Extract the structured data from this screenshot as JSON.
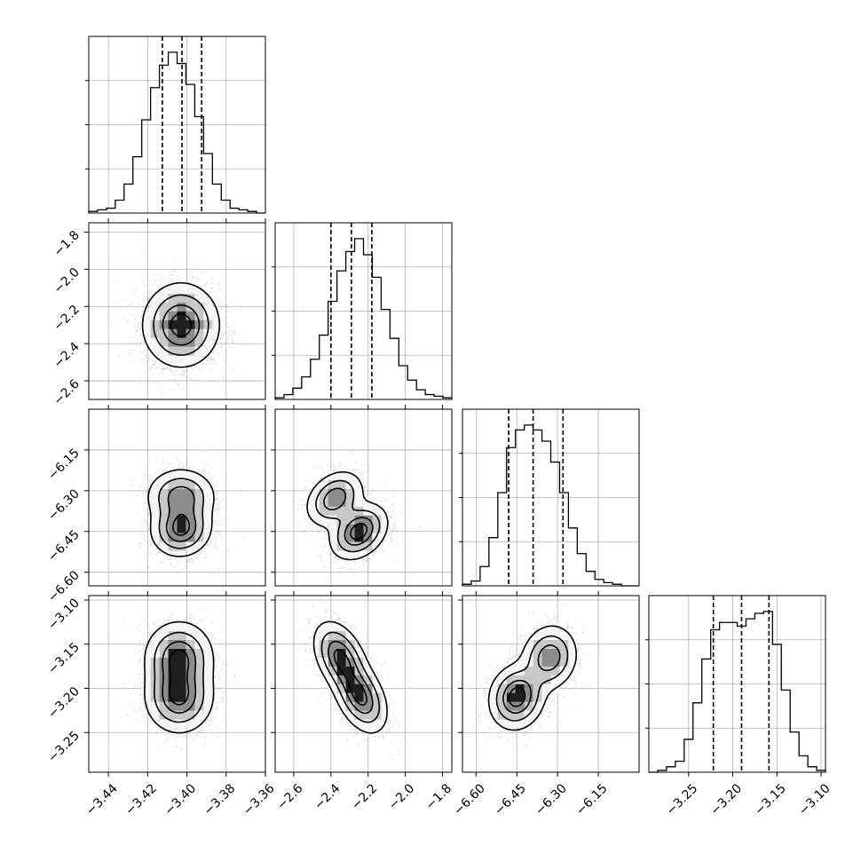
{
  "chart_data": {
    "type": "corner",
    "grid": true,
    "params": [
      {
        "range": [
          -3.45,
          -3.36
        ],
        "ticks": [
          -3.44,
          -3.42,
          -3.4,
          -3.38,
          -3.36
        ],
        "tick_labels": [
          "−3.44",
          "−3.42",
          "−3.40",
          "−3.38",
          "−3.36"
        ],
        "mean": -3.4025,
        "sd": 0.0095,
        "quantiles": [
          -3.4125,
          -3.4025,
          -3.3925
        ],
        "hist": [
          1,
          2,
          3,
          8,
          18,
          35,
          58,
          78,
          92,
          100,
          93,
          80,
          60,
          37,
          18,
          8,
          3,
          2,
          1,
          0
        ]
      },
      {
        "range": [
          -2.7,
          -1.75
        ],
        "ticks": [
          -2.6,
          -2.4,
          -2.2,
          -2.0,
          -1.8
        ],
        "tick_labels": [
          "−2.6",
          "−2.4",
          "−2.2",
          "−2.0",
          "−1.8"
        ],
        "mean": -2.29,
        "sd": 0.11,
        "quantiles": [
          -2.4,
          -2.29,
          -2.18
        ],
        "hist": [
          1,
          3,
          7,
          14,
          25,
          40,
          61,
          80,
          92,
          100,
          90,
          76,
          56,
          38,
          21,
          12,
          6,
          3,
          2,
          1
        ]
      },
      {
        "range": [
          -6.65,
          -6.0
        ],
        "ticks": [
          -6.6,
          -6.45,
          -6.3,
          -6.15
        ],
        "tick_labels": [
          "−6.60",
          "−6.45",
          "−6.30",
          "−6.15"
        ],
        "mean": -6.39,
        "sd": 0.085,
        "quantiles": [
          -6.48,
          -6.39,
          -6.28
        ],
        "hist": [
          1,
          3,
          12,
          30,
          58,
          86,
          97,
          100,
          97,
          90,
          77,
          58,
          36,
          20,
          9,
          4,
          2,
          1,
          0,
          0
        ]
      },
      {
        "range": [
          -3.295,
          -3.095
        ],
        "ticks": [
          -3.25,
          -3.2,
          -3.15,
          -3.1
        ],
        "tick_labels": [
          "−3.25",
          "−3.20",
          "−3.15",
          "−3.10"
        ],
        "mean": -3.19,
        "sd": 0.03,
        "quantiles": [
          -3.222,
          -3.19,
          -3.159
        ],
        "hist": [
          0,
          1,
          3,
          6,
          18,
          38,
          62,
          78,
          82,
          82,
          80,
          84,
          87,
          88,
          70,
          45,
          22,
          9,
          3,
          1
        ]
      }
    ],
    "pairs": [
      {
        "row": 1,
        "col": 0,
        "blobs": [
          {
            "mx": -3.403,
            "my": -2.3,
            "sx": 0.0095,
            "sy": 0.11,
            "rho": 0.0,
            "w": 1.0
          }
        ]
      },
      {
        "row": 2,
        "col": 0,
        "blobs": [
          {
            "mx": -3.403,
            "my": -6.44,
            "sx": 0.0075,
            "sy": 0.05,
            "rho": 0.05,
            "w": 0.55
          },
          {
            "mx": -3.403,
            "my": -6.32,
            "sx": 0.0085,
            "sy": 0.05,
            "rho": 0.0,
            "w": 0.45
          }
        ]
      },
      {
        "row": 3,
        "col": 0,
        "blobs": [
          {
            "mx": -3.404,
            "my": -3.21,
            "sx": 0.0085,
            "sy": 0.02,
            "rho": 0.0,
            "w": 0.5
          },
          {
            "mx": -3.404,
            "my": -3.165,
            "sx": 0.0085,
            "sy": 0.02,
            "rho": 0.0,
            "w": 0.5
          }
        ]
      },
      {
        "row": 2,
        "col": 1,
        "blobs": [
          {
            "mx": -2.25,
            "my": -6.45,
            "sx": 0.075,
            "sy": 0.05,
            "rho": 0.3,
            "w": 0.55
          },
          {
            "mx": -2.38,
            "my": -6.33,
            "sx": 0.075,
            "sy": 0.05,
            "rho": 0.3,
            "w": 0.45
          }
        ]
      },
      {
        "row": 3,
        "col": 1,
        "blobs": [
          {
            "mx": -2.35,
            "my": -3.165,
            "sx": 0.07,
            "sy": 0.02,
            "rho": -0.4,
            "w": 0.5
          },
          {
            "mx": -2.24,
            "my": -3.21,
            "sx": 0.07,
            "sy": 0.02,
            "rho": -0.4,
            "w": 0.5
          }
        ]
      },
      {
        "row": 3,
        "col": 2,
        "blobs": [
          {
            "mx": -6.45,
            "my": -3.21,
            "sx": 0.05,
            "sy": 0.018,
            "rho": 0.1,
            "w": 0.55
          },
          {
            "mx": -6.33,
            "my": -3.165,
            "sx": 0.05,
            "sy": 0.018,
            "rho": 0.1,
            "w": 0.45
          }
        ]
      }
    ]
  }
}
